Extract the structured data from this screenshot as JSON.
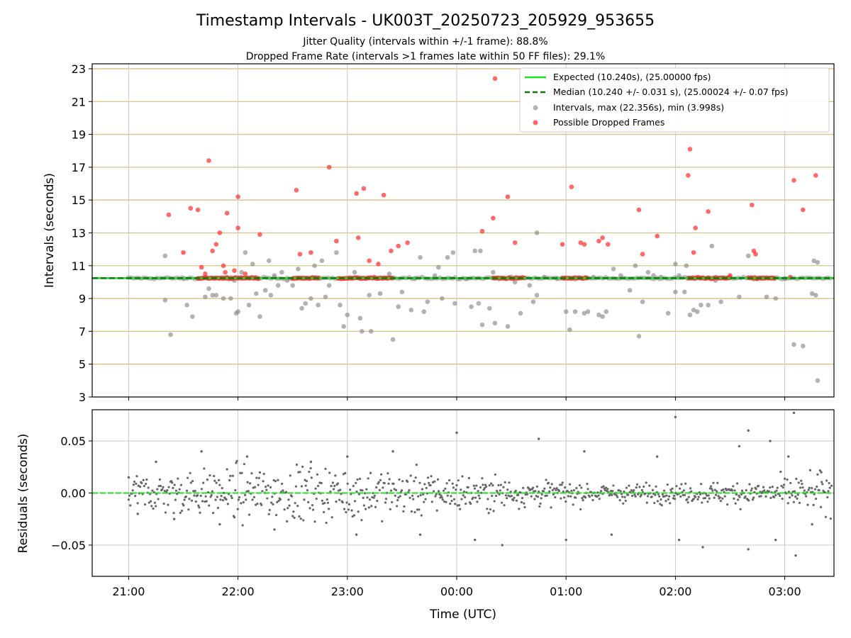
{
  "chart_data": [
    {
      "type": "scatter",
      "title": "Timestamp Intervals - UK003T_20250723_205929_953655",
      "subtitle_lines": [
        "Jitter Quality (intervals within +/-1 frame): 88.8%",
        "Dropped Frame Rate (intervals >1 frames late within 50 FF files): 29.1%"
      ],
      "ylabel": "Intervals (seconds)",
      "ylim": [
        3,
        23.3
      ],
      "yticks": [
        "3",
        "5",
        "7",
        "9",
        "11",
        "13",
        "15",
        "17",
        "19",
        "21",
        "23"
      ],
      "x_start": "20:40",
      "x_end": "03:27",
      "grid": true,
      "legend_position": "top-right",
      "lines": [
        {
          "name": "Expected (10.240s), (25.00000 fps)",
          "y": 10.24,
          "color": "#22dd22",
          "style": "solid"
        },
        {
          "name": "Median (10.240 +/- 0.031 s), (25.00024 +/- 0.07 fps)",
          "y": 10.24,
          "color": "#0a7a0a",
          "style": "dashed"
        }
      ],
      "series": [
        {
          "name": "Intervals, max (22.356s), min (3.998s)",
          "color": "#888888",
          "points": [
            [
              "21:20",
              11.6
            ],
            [
              "21:20",
              8.9
            ],
            [
              "21:23",
              6.8
            ],
            [
              "21:30",
              10.2
            ],
            [
              "21:32",
              8.6
            ],
            [
              "21:35",
              7.9
            ],
            [
              "21:42",
              9.1
            ],
            [
              "21:44",
              9.6
            ],
            [
              "21:46",
              9.2
            ],
            [
              "21:48",
              9.2
            ],
            [
              "21:52",
              9.0
            ],
            [
              "21:54",
              10.3
            ],
            [
              "21:56",
              9.0
            ],
            [
              "21:58",
              10.1
            ],
            [
              "21:59",
              8.1
            ],
            [
              "22:00",
              8.2
            ],
            [
              "22:02",
              10.6
            ],
            [
              "22:04",
              11.8
            ],
            [
              "22:06",
              8.6
            ],
            [
              "22:08",
              11.1
            ],
            [
              "22:10",
              9.3
            ],
            [
              "22:12",
              7.9
            ],
            [
              "22:15",
              9.5
            ],
            [
              "22:17",
              11.3
            ],
            [
              "22:18",
              9.2
            ],
            [
              "22:20",
              10.4
            ],
            [
              "22:22",
              9.8
            ],
            [
              "22:24",
              10.6
            ],
            [
              "22:27",
              10.1
            ],
            [
              "22:30",
              9.8
            ],
            [
              "22:33",
              10.8
            ],
            [
              "22:35",
              8.4
            ],
            [
              "22:37",
              8.7
            ],
            [
              "22:40",
              9.0
            ],
            [
              "22:42",
              11.0
            ],
            [
              "22:44",
              8.6
            ],
            [
              "22:46",
              11.3
            ],
            [
              "22:48",
              9.1
            ],
            [
              "22:50",
              9.8
            ],
            [
              "22:54",
              11.8
            ],
            [
              "22:56",
              8.6
            ],
            [
              "22:58",
              7.3
            ],
            [
              "23:00",
              8.0
            ],
            [
              "23:04",
              10.6
            ],
            [
              "23:07",
              7.8
            ],
            [
              "23:08",
              7.0
            ],
            [
              "23:12",
              9.2
            ],
            [
              "23:13",
              7.0
            ],
            [
              "23:18",
              9.3
            ],
            [
              "23:23",
              10.5
            ],
            [
              "23:25",
              6.5
            ],
            [
              "23:28",
              8.5
            ],
            [
              "23:30",
              9.4
            ],
            [
              "23:35",
              8.3
            ],
            [
              "23:37",
              10.2
            ],
            [
              "23:40",
              11.5
            ],
            [
              "23:42",
              8.2
            ],
            [
              "23:44",
              8.8
            ],
            [
              "23:48",
              10.4
            ],
            [
              "23:50",
              10.9
            ],
            [
              "23:52",
              9.0
            ],
            [
              "23:55",
              11.5
            ],
            [
              "23:58",
              11.8
            ],
            [
              "23:59",
              8.7
            ],
            [
              "00:05",
              10.2
            ],
            [
              "00:08",
              8.5
            ],
            [
              "00:10",
              11.9
            ],
            [
              "00:12",
              8.7
            ],
            [
              "00:13",
              11.9
            ],
            [
              "00:14",
              7.4
            ],
            [
              "00:18",
              8.4
            ],
            [
              "00:20",
              10.6
            ],
            [
              "00:21",
              7.5
            ],
            [
              "00:28",
              7.3
            ],
            [
              "00:32",
              10.0
            ],
            [
              "00:35",
              8.1
            ],
            [
              "00:40",
              9.8
            ],
            [
              "00:42",
              8.8
            ],
            [
              "00:44",
              13.0
            ],
            [
              "00:44",
              9.2
            ],
            [
              "00:48",
              10.3
            ],
            [
              "00:55",
              10.2
            ],
            [
              "01:00",
              8.2
            ],
            [
              "01:02",
              7.1
            ],
            [
              "01:05",
              8.2
            ],
            [
              "01:10",
              8.1
            ],
            [
              "01:12",
              8.2
            ],
            [
              "01:15",
              10.3
            ],
            [
              "01:18",
              8.0
            ],
            [
              "01:20",
              7.9
            ],
            [
              "01:22",
              8.2
            ],
            [
              "01:26",
              10.8
            ],
            [
              "01:30",
              10.4
            ],
            [
              "01:35",
              9.5
            ],
            [
              "01:38",
              11.0
            ],
            [
              "01:40",
              6.7
            ],
            [
              "01:42",
              8.8
            ],
            [
              "01:45",
              10.6
            ],
            [
              "01:48",
              10.4
            ],
            [
              "01:52",
              10.3
            ],
            [
              "01:56",
              8.1
            ],
            [
              "02:00",
              9.4
            ],
            [
              "02:00",
              11.1
            ],
            [
              "02:02",
              10.4
            ],
            [
              "02:05",
              9.4
            ],
            [
              "02:06",
              11.0
            ],
            [
              "02:08",
              8.0
            ],
            [
              "02:10",
              8.3
            ],
            [
              "02:12",
              8.2
            ],
            [
              "02:14",
              8.6
            ],
            [
              "02:18",
              8.6
            ],
            [
              "02:20",
              12.2
            ],
            [
              "02:22",
              10.1
            ],
            [
              "02:25",
              8.8
            ],
            [
              "02:30",
              10.3
            ],
            [
              "02:35",
              9.1
            ],
            [
              "02:40",
              11.6
            ],
            [
              "02:45",
              10.2
            ],
            [
              "02:50",
              9.1
            ],
            [
              "02:55",
              9.0
            ],
            [
              "03:00",
              10.2
            ],
            [
              "03:05",
              6.2
            ],
            [
              "03:10",
              6.1
            ],
            [
              "03:15",
              9.3
            ],
            [
              "03:16",
              11.3
            ],
            [
              "03:17",
              9.2
            ],
            [
              "03:18",
              4.0
            ],
            [
              "03:18",
              11.2
            ]
          ]
        },
        {
          "name": "Possible Dropped Frames",
          "color": "#ff2a2a",
          "points": [
            [
              "21:22",
              14.1
            ],
            [
              "21:30",
              11.8
            ],
            [
              "21:34",
              14.5
            ],
            [
              "21:38",
              14.4
            ],
            [
              "21:40",
              10.9
            ],
            [
              "21:42",
              10.5
            ],
            [
              "21:44",
              17.4
            ],
            [
              "21:46",
              11.9
            ],
            [
              "21:48",
              12.3
            ],
            [
              "21:50",
              13.0
            ],
            [
              "21:52",
              11.0
            ],
            [
              "21:53",
              10.6
            ],
            [
              "21:54",
              14.2
            ],
            [
              "21:58",
              10.7
            ],
            [
              "22:00",
              15.2
            ],
            [
              "22:00",
              13.3
            ],
            [
              "22:04",
              10.5
            ],
            [
              "22:12",
              12.9
            ],
            [
              "22:32",
              15.6
            ],
            [
              "22:34",
              11.7
            ],
            [
              "22:40",
              11.8
            ],
            [
              "22:50",
              17.0
            ],
            [
              "22:54",
              12.5
            ],
            [
              "23:05",
              15.4
            ],
            [
              "23:06",
              12.7
            ],
            [
              "23:09",
              15.7
            ],
            [
              "23:12",
              11.3
            ],
            [
              "23:17",
              11.1
            ],
            [
              "23:20",
              15.3
            ],
            [
              "23:24",
              11.9
            ],
            [
              "23:28",
              12.2
            ],
            [
              "23:33",
              12.4
            ],
            [
              "00:14",
              13.1
            ],
            [
              "00:20",
              13.9
            ],
            [
              "00:21",
              22.4
            ],
            [
              "00:28",
              15.2
            ],
            [
              "00:32",
              12.4
            ],
            [
              "00:58",
              12.3
            ],
            [
              "01:03",
              15.8
            ],
            [
              "01:08",
              12.4
            ],
            [
              "01:10",
              12.3
            ],
            [
              "01:18",
              12.5
            ],
            [
              "01:20",
              12.7
            ],
            [
              "01:23",
              12.3
            ],
            [
              "01:40",
              14.4
            ],
            [
              "01:42",
              11.7
            ],
            [
              "01:50",
              12.8
            ],
            [
              "02:07",
              16.5
            ],
            [
              "02:08",
              18.1
            ],
            [
              "02:10",
              11.8
            ],
            [
              "02:11",
              13.3
            ],
            [
              "02:18",
              14.3
            ],
            [
              "02:30",
              10.4
            ],
            [
              "02:42",
              14.7
            ],
            [
              "02:43",
              11.9
            ],
            [
              "02:44",
              11.7
            ],
            [
              "03:03",
              10.3
            ],
            [
              "03:05",
              16.2
            ],
            [
              "03:10",
              14.4
            ],
            [
              "03:17",
              16.5
            ]
          ]
        }
      ]
    },
    {
      "type": "scatter",
      "ylabel": "Residuals (seconds)",
      "xlabel": "Time (UTC)",
      "ylim": [
        -0.08,
        0.08
      ],
      "yticks": [
        "−0.05",
        "0.00",
        "0.05"
      ],
      "xticks": [
        "21:00",
        "22:00",
        "23:00",
        "00:00",
        "01:00",
        "02:00",
        "03:00"
      ],
      "x_start": "20:40",
      "x_end": "03:27",
      "grid": true,
      "zero_line": {
        "y": 0,
        "color": "#22dd22"
      },
      "series": [
        {
          "name": "",
          "color": "#666666",
          "points": [
            [
              "21:00",
              0.015
            ],
            [
              "21:05",
              -0.02
            ],
            [
              "21:15",
              0.03
            ],
            [
              "21:25",
              -0.025
            ],
            [
              "21:40",
              0.04
            ],
            [
              "21:50",
              -0.03
            ],
            [
              "22:05",
              0.035
            ],
            [
              "22:20",
              -0.035
            ],
            [
              "22:40",
              0.03
            ],
            [
              "23:00",
              0.035
            ],
            [
              "23:05",
              -0.04
            ],
            [
              "23:25",
              0.04
            ],
            [
              "23:40",
              -0.04
            ],
            [
              "00:00",
              0.058
            ],
            [
              "00:10",
              -0.045
            ],
            [
              "00:25",
              -0.05
            ],
            [
              "00:45",
              0.052
            ],
            [
              "01:00",
              -0.045
            ],
            [
              "01:10",
              0.04
            ],
            [
              "01:25",
              -0.04
            ],
            [
              "01:50",
              0.035
            ],
            [
              "02:00",
              0.073
            ],
            [
              "02:02",
              -0.045
            ],
            [
              "02:15",
              -0.052
            ],
            [
              "02:35",
              0.045
            ],
            [
              "02:40",
              0.06
            ],
            [
              "02:40",
              -0.054
            ],
            [
              "02:52",
              0.05
            ],
            [
              "02:55",
              -0.045
            ],
            [
              "03:02",
              0.035
            ],
            [
              "03:06",
              -0.06
            ],
            [
              "03:05",
              0.077
            ],
            [
              "03:15",
              -0.03
            ],
            [
              "03:20",
              0.02
            ]
          ]
        }
      ]
    }
  ],
  "colors": {
    "expected": "#22dd22",
    "median": "#0a7a0a",
    "intervals": "#888888",
    "dropped": "#ff2a2a",
    "residuals": "#666666",
    "hgrid_top": "#d8c282",
    "grid": "#c8c8c8"
  }
}
